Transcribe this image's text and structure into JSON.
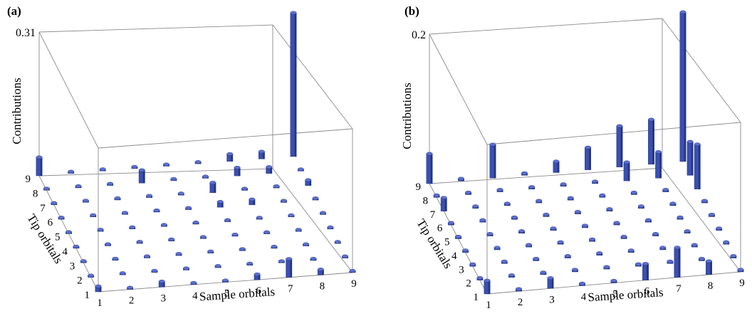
{
  "chart_data": [
    {
      "type": "bar3d",
      "panel_label": "(a)",
      "xlabel": "Sample orbitals",
      "ylabel": "Tip orbitals",
      "zlabel": "Contributions",
      "x_ticks": [
        "1",
        "2",
        "3",
        "4",
        "5",
        "6",
        "7",
        "8",
        "9"
      ],
      "y_ticks": [
        "1",
        "2",
        "3",
        "4",
        "5",
        "6",
        "7",
        "8",
        "9"
      ],
      "zmax_label": "0.31",
      "zlim": [
        0,
        0.31
      ],
      "grid": "9x9",
      "default_value": 0.004,
      "values_nonzero": [
        {
          "sample": 1,
          "tip": 1,
          "value": 0.012
        },
        {
          "sample": 1,
          "tip": 9,
          "value": 0.04
        },
        {
          "sample": 3,
          "tip": 1,
          "value": 0.012
        },
        {
          "sample": 6,
          "tip": 1,
          "value": 0.012
        },
        {
          "sample": 7,
          "tip": 1,
          "value": 0.04
        },
        {
          "sample": 8,
          "tip": 1,
          "value": 0.012
        },
        {
          "sample": 4,
          "tip": 8,
          "value": 0.028
        },
        {
          "sample": 6,
          "tip": 6,
          "value": 0.012
        },
        {
          "sample": 6,
          "tip": 7,
          "value": 0.022
        },
        {
          "sample": 7,
          "tip": 8,
          "value": 0.018
        },
        {
          "sample": 7,
          "tip": 6,
          "value": 0.012
        },
        {
          "sample": 8,
          "tip": 8,
          "value": 0.014
        },
        {
          "sample": 9,
          "tip": 9,
          "value": 0.31
        },
        {
          "sample": 8,
          "tip": 9,
          "value": 0.016
        },
        {
          "sample": 7,
          "tip": 9,
          "value": 0.016
        },
        {
          "sample": 9,
          "tip": 7,
          "value": 0.012
        }
      ]
    },
    {
      "type": "bar3d",
      "panel_label": "(b)",
      "xlabel": "Sample orbitals",
      "ylabel": "Tip orbitals",
      "zlabel": "Contributions",
      "x_ticks": [
        "1",
        "2",
        "3",
        "4",
        "5",
        "6",
        "7",
        "8",
        "9"
      ],
      "y_ticks": [
        "1",
        "2",
        "3",
        "4",
        "5",
        "6",
        "7",
        "8",
        "9"
      ],
      "zmax_label": "0.2",
      "zlim": [
        0,
        0.2
      ],
      "grid": "9x9",
      "default_value": 0.003,
      "values_nonzero": [
        {
          "sample": 1,
          "tip": 1,
          "value": 0.018
        },
        {
          "sample": 1,
          "tip": 9,
          "value": 0.04
        },
        {
          "sample": 1,
          "tip": 7,
          "value": 0.018
        },
        {
          "sample": 3,
          "tip": 9,
          "value": 0.045
        },
        {
          "sample": 3,
          "tip": 1,
          "value": 0.014
        },
        {
          "sample": 6,
          "tip": 1,
          "value": 0.022
        },
        {
          "sample": 7,
          "tip": 1,
          "value": 0.04
        },
        {
          "sample": 8,
          "tip": 1,
          "value": 0.018
        },
        {
          "sample": 9,
          "tip": 9,
          "value": 0.2
        },
        {
          "sample": 9,
          "tip": 7,
          "value": 0.06
        },
        {
          "sample": 8,
          "tip": 9,
          "value": 0.06
        },
        {
          "sample": 7,
          "tip": 9,
          "value": 0.055
        },
        {
          "sample": 9,
          "tip": 8,
          "value": 0.045
        },
        {
          "sample": 8,
          "tip": 8,
          "value": 0.035
        },
        {
          "sample": 7,
          "tip": 8,
          "value": 0.025
        },
        {
          "sample": 6,
          "tip": 9,
          "value": 0.03
        },
        {
          "sample": 5,
          "tip": 9,
          "value": 0.015
        }
      ]
    }
  ]
}
